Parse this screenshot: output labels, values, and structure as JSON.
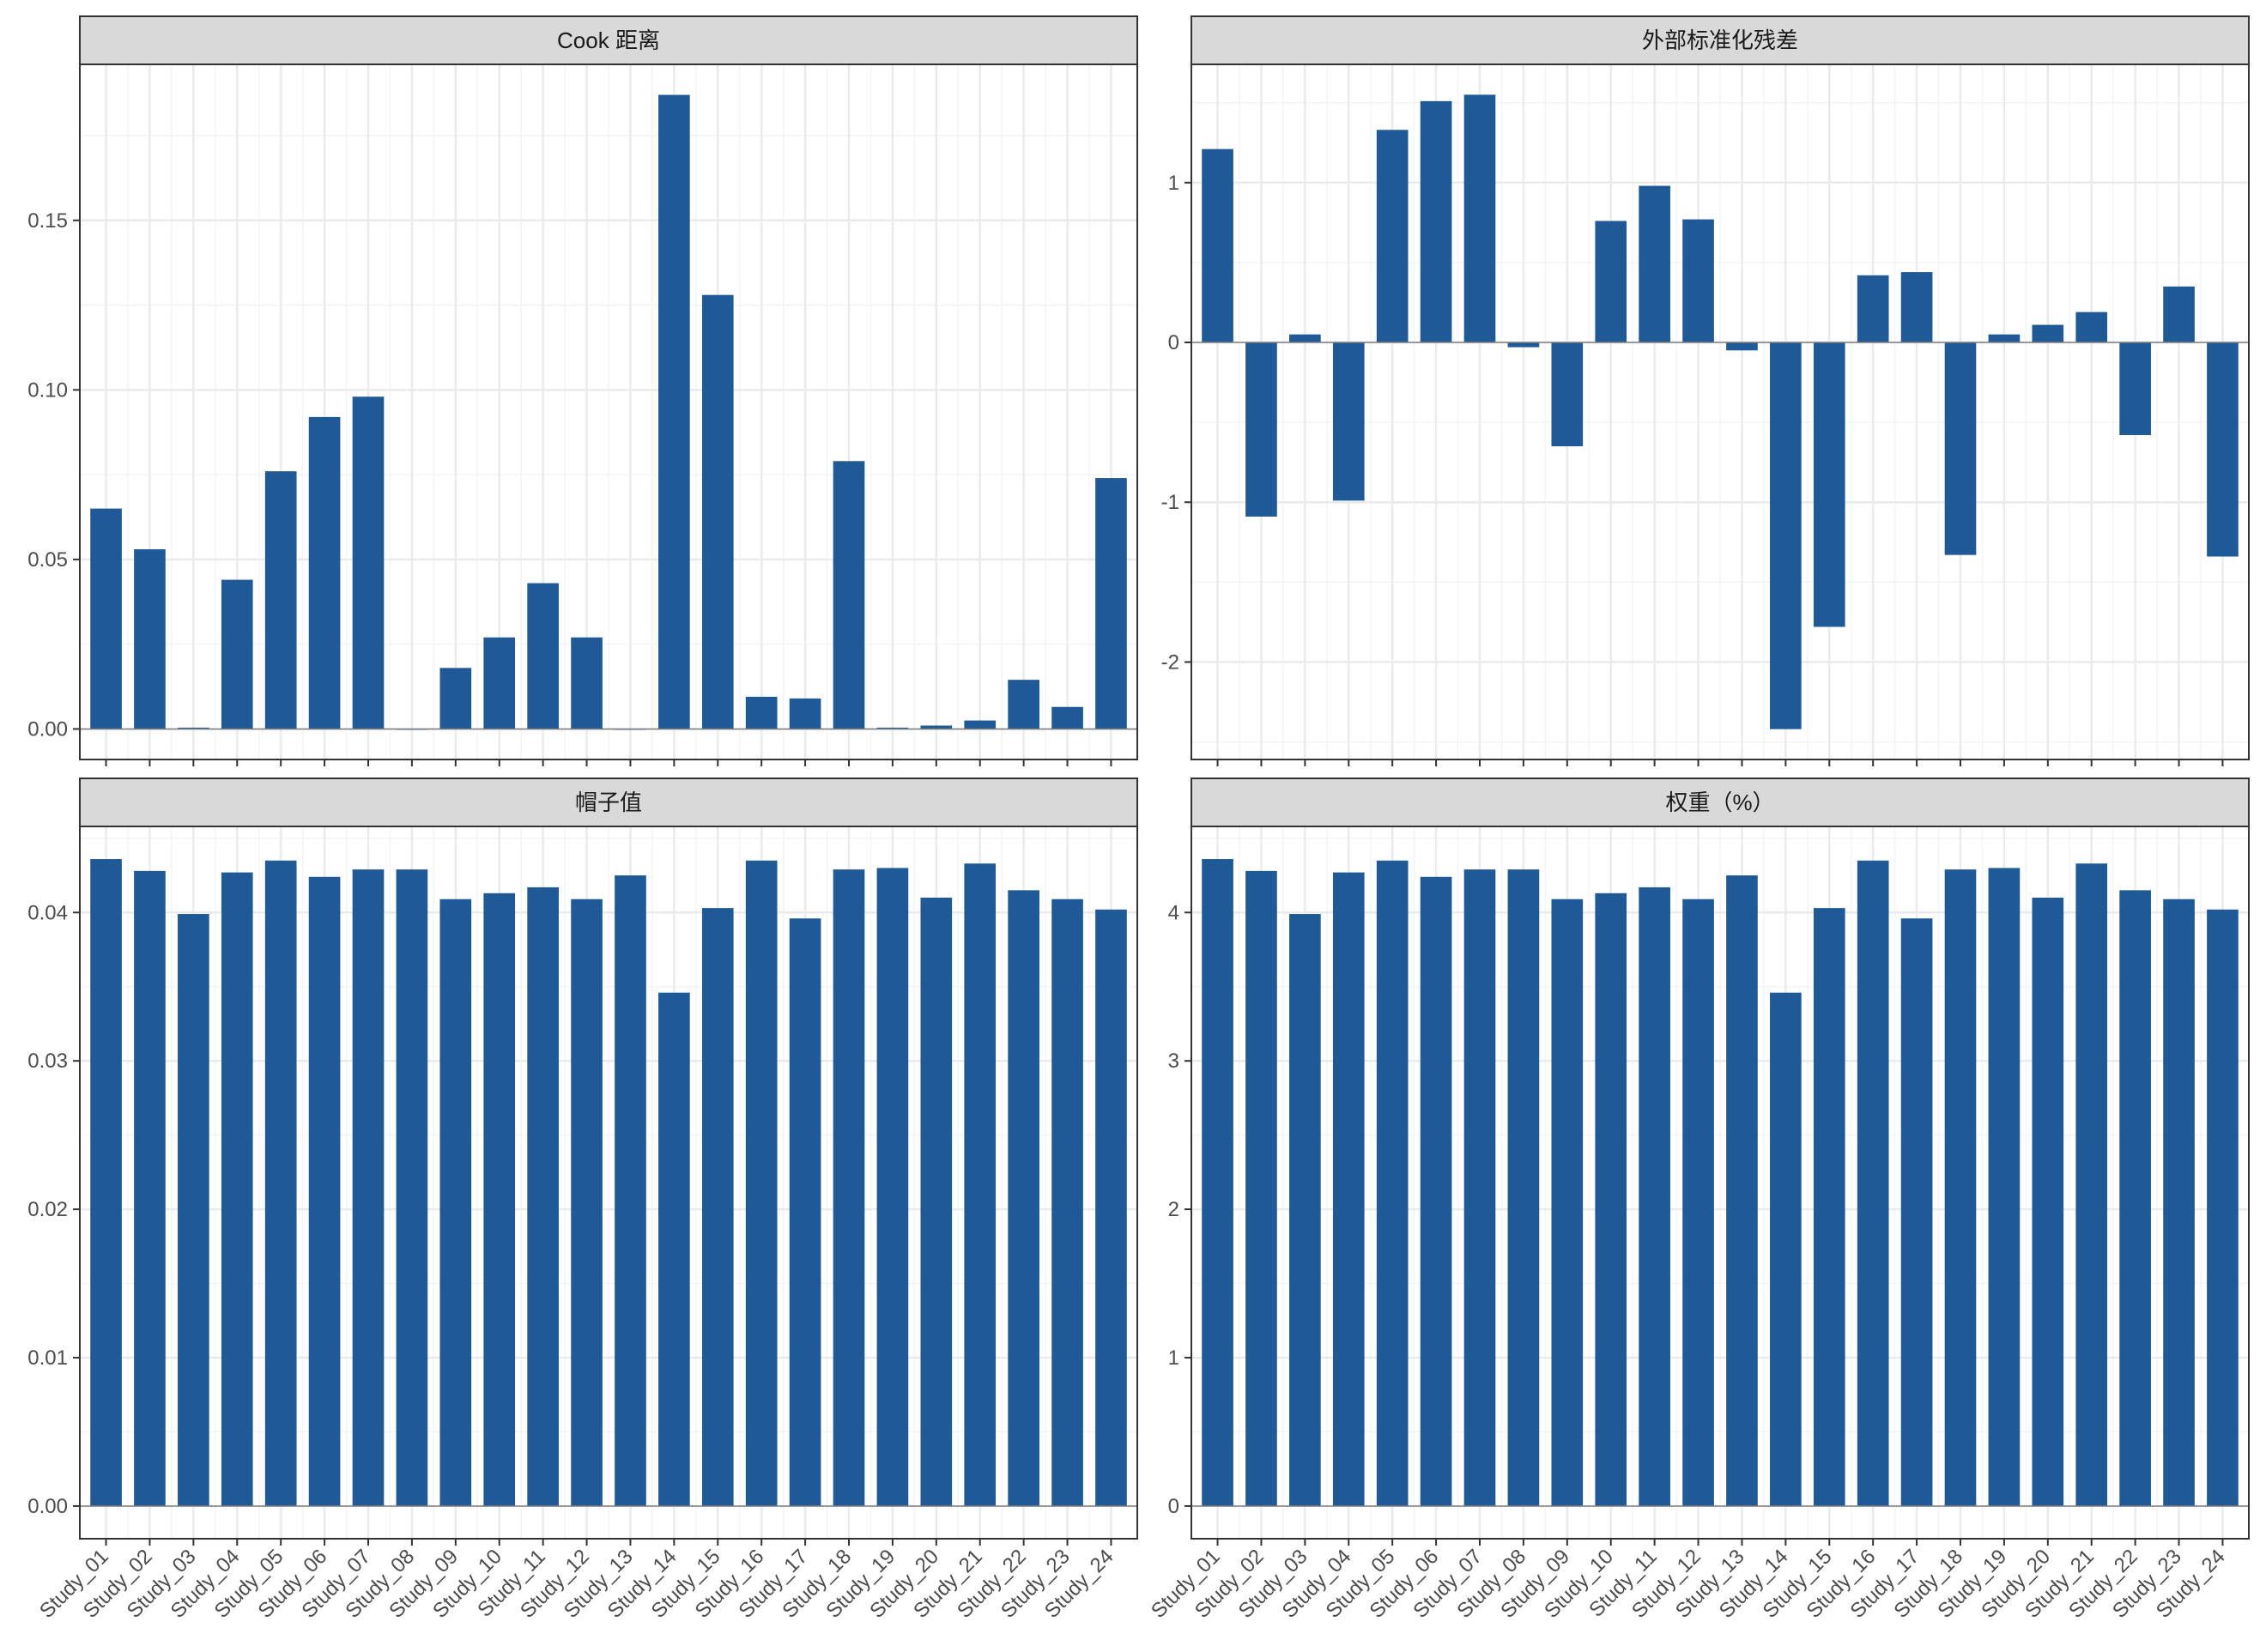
{
  "chart_data": [
    {
      "type": "bar",
      "title": "Cook 距离",
      "categories": [
        "Study_01",
        "Study_02",
        "Study_03",
        "Study_04",
        "Study_05",
        "Study_06",
        "Study_07",
        "Study_08",
        "Study_09",
        "Study_10",
        "Study_11",
        "Study_12",
        "Study_13",
        "Study_14",
        "Study_15",
        "Study_16",
        "Study_17",
        "Study_18",
        "Study_19",
        "Study_20",
        "Study_21",
        "Study_22",
        "Study_23",
        "Study_24"
      ],
      "values": [
        0.065,
        0.053,
        0.0004,
        0.044,
        0.076,
        0.092,
        0.098,
        0.0,
        0.018,
        0.027,
        0.043,
        0.027,
        0.0,
        0.187,
        0.128,
        0.0095,
        0.009,
        0.079,
        0.0004,
        0.001,
        0.0025,
        0.0145,
        0.0065,
        0.074
      ],
      "ylim": [
        -0.009,
        0.196
      ],
      "yticks": [
        0.0,
        0.05,
        0.1,
        0.15
      ],
      "ytick_labels": [
        "0.00",
        "0.05",
        "0.10",
        "0.15"
      ],
      "show_x_labels": false
    },
    {
      "type": "bar",
      "title": "外部标准化残差",
      "categories": [
        "Study_01",
        "Study_02",
        "Study_03",
        "Study_04",
        "Study_05",
        "Study_06",
        "Study_07",
        "Study_08",
        "Study_09",
        "Study_10",
        "Study_11",
        "Study_12",
        "Study_13",
        "Study_14",
        "Study_15",
        "Study_16",
        "Study_17",
        "Study_18",
        "Study_19",
        "Study_20",
        "Study_21",
        "Study_22",
        "Study_23",
        "Study_24"
      ],
      "values": [
        1.21,
        -1.09,
        0.05,
        -0.99,
        1.33,
        1.51,
        1.55,
        -0.03,
        -0.65,
        0.76,
        0.98,
        0.77,
        -0.05,
        -2.42,
        -1.78,
        0.42,
        0.44,
        -1.33,
        0.05,
        0.11,
        0.19,
        -0.58,
        0.35,
        -1.34
      ],
      "ylim": [
        -2.61,
        1.74
      ],
      "yticks": [
        -2,
        -1,
        0,
        1
      ],
      "ytick_labels": [
        "-2",
        "-1",
        "0",
        "1"
      ],
      "show_x_labels": false
    },
    {
      "type": "bar",
      "title": "帽子值",
      "categories": [
        "Study_01",
        "Study_02",
        "Study_03",
        "Study_04",
        "Study_05",
        "Study_06",
        "Study_07",
        "Study_08",
        "Study_09",
        "Study_10",
        "Study_11",
        "Study_12",
        "Study_13",
        "Study_14",
        "Study_15",
        "Study_16",
        "Study_17",
        "Study_18",
        "Study_19",
        "Study_20",
        "Study_21",
        "Study_22",
        "Study_23",
        "Study_24"
      ],
      "values": [
        0.0436,
        0.0428,
        0.0399,
        0.0427,
        0.0435,
        0.0424,
        0.0429,
        0.0429,
        0.0409,
        0.0413,
        0.0417,
        0.0409,
        0.0425,
        0.0346,
        0.0403,
        0.0435,
        0.0396,
        0.0429,
        0.043,
        0.041,
        0.0433,
        0.0415,
        0.0409,
        0.0402
      ],
      "ylim": [
        -0.0022,
        0.0458
      ],
      "yticks": [
        0.0,
        0.01,
        0.02,
        0.03,
        0.04
      ],
      "ytick_labels": [
        "0.00",
        "0.01",
        "0.02",
        "0.03",
        "0.04"
      ],
      "show_x_labels": true
    },
    {
      "type": "bar",
      "title": "权重（%）",
      "categories": [
        "Study_01",
        "Study_02",
        "Study_03",
        "Study_04",
        "Study_05",
        "Study_06",
        "Study_07",
        "Study_08",
        "Study_09",
        "Study_10",
        "Study_11",
        "Study_12",
        "Study_13",
        "Study_14",
        "Study_15",
        "Study_16",
        "Study_17",
        "Study_18",
        "Study_19",
        "Study_20",
        "Study_21",
        "Study_22",
        "Study_23",
        "Study_24"
      ],
      "values": [
        4.36,
        4.28,
        3.99,
        4.27,
        4.35,
        4.24,
        4.29,
        4.29,
        4.09,
        4.13,
        4.17,
        4.09,
        4.25,
        3.46,
        4.03,
        4.35,
        3.96,
        4.29,
        4.3,
        4.1,
        4.33,
        4.15,
        4.09,
        4.02
      ],
      "ylim": [
        -0.22,
        4.58
      ],
      "yticks": [
        0,
        1,
        2,
        3,
        4
      ],
      "ytick_labels": [
        "0",
        "1",
        "2",
        "3",
        "4"
      ],
      "show_x_labels": true
    }
  ],
  "colors": {
    "bar": "#1f5a96",
    "strip_fill": "#d9d9d9",
    "strip_border": "#333333",
    "panel_border": "#333333",
    "grid_major": "#ebebeb",
    "grid_minor": "#f4f4f4",
    "axis_text": "#4d4d4d",
    "zero_line": "#7f7f7f"
  }
}
